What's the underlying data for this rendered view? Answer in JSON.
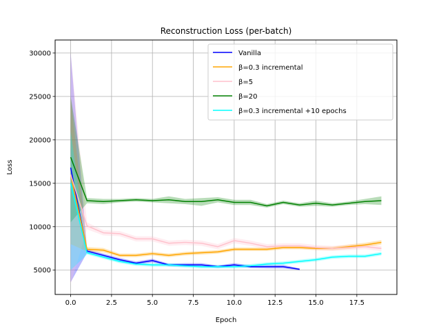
{
  "chart_data": {
    "type": "line",
    "title": "Reconstruction Loss (per-batch)",
    "xlabel": "Epoch",
    "ylabel": "Loss",
    "xlim": [
      -0.95,
      19.95
    ],
    "ylim": [
      2200,
      31500
    ],
    "xticks": [
      0,
      2.5,
      5,
      7.5,
      10,
      12.5,
      15,
      17.5
    ],
    "xtick_labels": [
      "0.0",
      "2.5",
      "5.0",
      "7.5",
      "10.0",
      "12.5",
      "15.0",
      "17.5"
    ],
    "yticks": [
      5000,
      10000,
      15000,
      20000,
      25000,
      30000
    ],
    "ytick_labels": [
      "5000",
      "10000",
      "15000",
      "20000",
      "25000",
      "30000"
    ],
    "grid": true,
    "legend_position": "top-right",
    "series": [
      {
        "name": "Vanilla",
        "color": "#0000ff",
        "x": [
          0,
          1,
          2,
          3,
          4,
          5,
          6,
          7,
          8,
          9,
          10,
          11,
          12,
          13,
          14
        ],
        "y": [
          16800,
          7200,
          6700,
          6200,
          5800,
          6100,
          5600,
          5600,
          5600,
          5400,
          5600,
          5400,
          5400,
          5400,
          5100
        ],
        "lower": [
          3600,
          7000,
          6500,
          6000,
          5600,
          5900,
          5450,
          5400,
          5400,
          5250,
          5400,
          5250,
          5200,
          5200,
          5000
        ],
        "upper": [
          30000,
          7400,
          6900,
          6400,
          6000,
          6300,
          5750,
          5800,
          5800,
          5550,
          5800,
          5550,
          5600,
          5600,
          5200
        ]
      },
      {
        "name": "β=0.3 incremental",
        "color": "#ffa500",
        "x": [
          0,
          1,
          2,
          3,
          4,
          5,
          6,
          7,
          8,
          9,
          10,
          11,
          12,
          13,
          14,
          15,
          16,
          17,
          18,
          19
        ],
        "y": [
          16000,
          7400,
          7300,
          6700,
          6700,
          6900,
          6700,
          6900,
          7000,
          7100,
          7400,
          7400,
          7400,
          7600,
          7600,
          7500,
          7500,
          7700,
          7900,
          8200
        ],
        "lower": [
          8000,
          7150,
          7050,
          6500,
          6500,
          6700,
          6500,
          6700,
          6800,
          6900,
          7200,
          7200,
          7200,
          7400,
          7400,
          7300,
          7300,
          7450,
          7650,
          7950
        ],
        "upper": [
          25000,
          7650,
          7550,
          6900,
          6900,
          7100,
          6900,
          7100,
          7200,
          7300,
          7600,
          7600,
          7600,
          7800,
          7800,
          7700,
          7700,
          7950,
          8150,
          8450
        ]
      },
      {
        "name": "β=5",
        "color": "#ffc0cb",
        "x": [
          0,
          1,
          2,
          3,
          4,
          5,
          6,
          7,
          8,
          9,
          10,
          11,
          12,
          13,
          14,
          15,
          16,
          17,
          18,
          19
        ],
        "y": [
          16000,
          10100,
          9300,
          9200,
          8600,
          8600,
          8100,
          8200,
          8100,
          7700,
          8400,
          8100,
          7700,
          7800,
          7800,
          7600,
          7500,
          7600,
          7700,
          7500
        ],
        "lower": [
          3400,
          9700,
          9000,
          8900,
          8300,
          8300,
          7800,
          7900,
          7800,
          7400,
          8100,
          7800,
          7400,
          7500,
          7500,
          7300,
          7200,
          7300,
          7400,
          7200
        ],
        "upper": [
          30000,
          10500,
          9600,
          9500,
          8900,
          8900,
          8400,
          8500,
          8400,
          8000,
          8700,
          8400,
          8000,
          8100,
          8100,
          7900,
          7800,
          7900,
          8000,
          7800
        ]
      },
      {
        "name": "β=20",
        "color": "#008000",
        "x": [
          0,
          1,
          2,
          3,
          4,
          5,
          6,
          7,
          8,
          9,
          10,
          11,
          12,
          13,
          14,
          15,
          16,
          17,
          18,
          19
        ],
        "y": [
          18000,
          13000,
          12900,
          13000,
          13100,
          13000,
          13100,
          12900,
          12900,
          13100,
          12800,
          12800,
          12400,
          12800,
          12500,
          12700,
          12500,
          12700,
          12900,
          13000
        ],
        "lower": [
          10500,
          12700,
          12600,
          12800,
          12900,
          12800,
          12700,
          12600,
          12400,
          12800,
          12500,
          12500,
          12200,
          12600,
          12300,
          12400,
          12300,
          12500,
          12600,
          12500
        ],
        "upper": [
          25000,
          13300,
          13200,
          13200,
          13300,
          13200,
          13500,
          13200,
          13300,
          13400,
          13100,
          13100,
          12600,
          13000,
          12700,
          13000,
          12700,
          12900,
          13200,
          13500
        ]
      },
      {
        "name": "β=0.3 incremental +10 epochs",
        "color": "#00ffff",
        "x": [
          0,
          1,
          2,
          3,
          4,
          5,
          6,
          7,
          8,
          9,
          10,
          11,
          12,
          13,
          14,
          15,
          16,
          17,
          18,
          19
        ],
        "y": [
          15000,
          7000,
          6500,
          6000,
          5700,
          5600,
          5600,
          5500,
          5400,
          5400,
          5400,
          5500,
          5700,
          5800,
          6000,
          6200,
          6500,
          6600,
          6600,
          6900
        ],
        "lower": [
          5000,
          6800,
          6300,
          5800,
          5500,
          5400,
          5400,
          5300,
          5200,
          5200,
          5200,
          5300,
          5500,
          5600,
          5800,
          6000,
          6300,
          6400,
          6400,
          6700
        ],
        "upper": [
          21000,
          7200,
          6700,
          6200,
          5900,
          5800,
          5800,
          5700,
          5600,
          5600,
          5600,
          5700,
          5900,
          6000,
          6200,
          6400,
          6700,
          6800,
          6800,
          7100
        ]
      }
    ]
  }
}
